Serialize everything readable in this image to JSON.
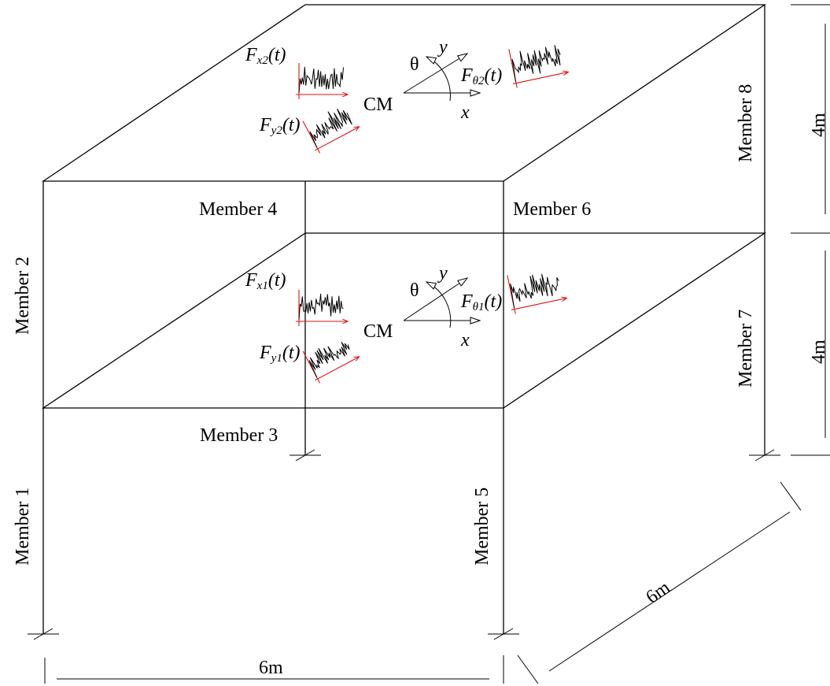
{
  "members": {
    "m1": "Member 1",
    "m2": "Member 2",
    "m3": "Member 3",
    "m4": "Member 4",
    "m5": "Member 5",
    "m6": "Member 6",
    "m7": "Member 7",
    "m8": "Member 8"
  },
  "dimensions": {
    "story_height_upper": "4m",
    "story_height_lower": "4m",
    "width": "6m",
    "depth": "6m"
  },
  "floors": [
    {
      "center_label": "CM",
      "axis_x": "x",
      "axis_y": "y",
      "rotation": "θ",
      "fx": {
        "base": "F",
        "sub": "x2",
        "arg": "(t)"
      },
      "fy": {
        "base": "F",
        "sub": "y2",
        "arg": "(t)"
      },
      "ftheta": {
        "base": "F",
        "sub": "θ2",
        "arg": "(t)"
      }
    },
    {
      "center_label": "CM",
      "axis_x": "x",
      "axis_y": "y",
      "rotation": "θ",
      "fx": {
        "base": "F",
        "sub": "x1",
        "arg": "(t)"
      },
      "fy": {
        "base": "F",
        "sub": "y1",
        "arg": "(t)"
      },
      "ftheta": {
        "base": "F",
        "sub": "θ1",
        "arg": "(t)"
      }
    }
  ],
  "colors": {
    "line": "#000000",
    "signal_axis": "#e01010"
  }
}
